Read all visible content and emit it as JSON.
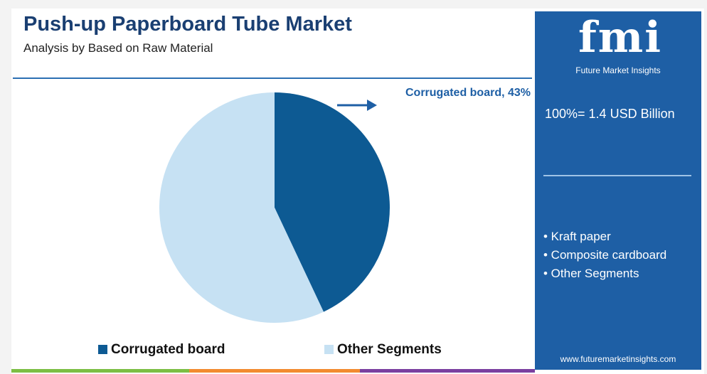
{
  "chart_data": {
    "type": "pie",
    "title": "Push-up Paperboard Tube Market",
    "subtitle": "Analysis by Based on Raw Material",
    "categories": [
      "Corrugated board",
      "Other Segments"
    ],
    "values": [
      43,
      57
    ],
    "value_labels": [
      "Corrugated board, 43%",
      null
    ],
    "colors": [
      "#0d5a93",
      "#c6e1f3"
    ],
    "legend": "bottom"
  },
  "sidebar": {
    "logo": "fmi",
    "brand": "Future Market Insights",
    "total": "100%= 1.4 USD Billion",
    "items": [
      "• Kraft paper",
      "• Composite cardboard",
      "• Other Segments"
    ],
    "url": "www.futuremarketinsights.com"
  }
}
